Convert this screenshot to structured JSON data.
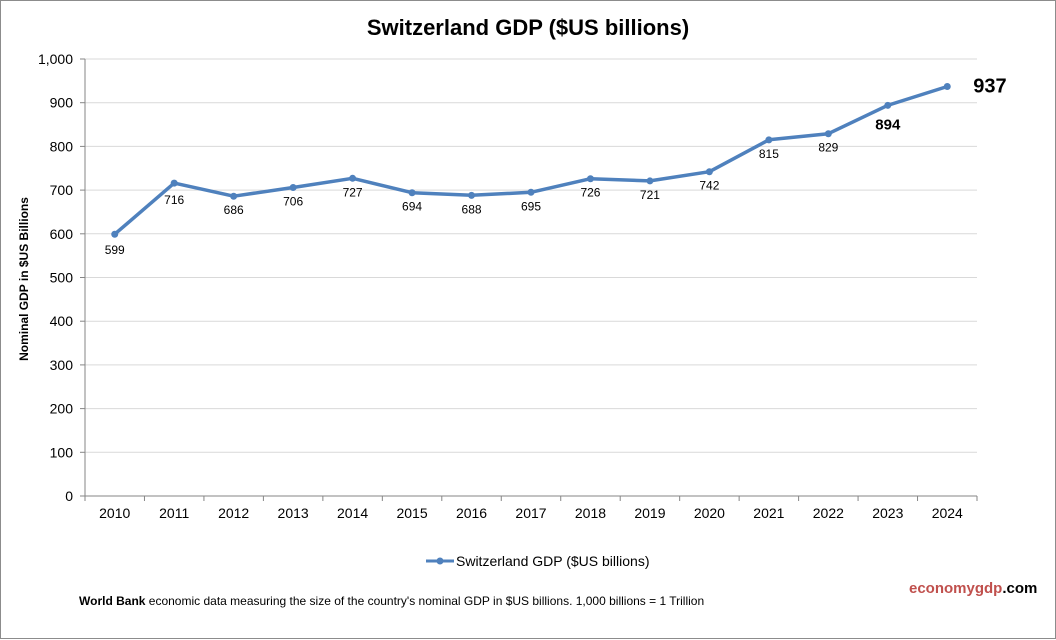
{
  "chart_data": {
    "type": "line",
    "title": "Switzerland GDP ($US billions)",
    "xlabel": "",
    "ylabel": "Nominal GDP in $US Billions",
    "categories": [
      "2010",
      "2011",
      "2012",
      "2013",
      "2014",
      "2015",
      "2016",
      "2017",
      "2018",
      "2019",
      "2020",
      "2021",
      "2022",
      "2023",
      "2024"
    ],
    "series": [
      {
        "name": "Switzerland GDP ($US billions)",
        "values": [
          599,
          716,
          686,
          706,
          727,
          694,
          688,
          695,
          726,
          721,
          742,
          815,
          829,
          894,
          937
        ],
        "data_labels": [
          "599",
          "716",
          "686",
          "706",
          "727",
          "694",
          "688",
          "695",
          "726",
          "721",
          "742",
          "815",
          "829",
          "894",
          "937"
        ]
      }
    ],
    "yticks": [
      "0",
      "100",
      "200",
      "300",
      "400",
      "500",
      "600",
      "700",
      "800",
      "900",
      "1,000"
    ],
    "ylim": [
      0,
      1000
    ],
    "grid": true,
    "legend": "bottom",
    "series_color": "#4f81bd"
  },
  "footer": {
    "source_bold": "World Bank",
    "note": " economic data  measuring the size of the country's nominal GDP in $US billions. 1,000 billions = 1 Trillion"
  },
  "brand": {
    "part1": "economy",
    "part2": "gdp",
    "part3": ".com",
    "color1": "#c0504d",
    "color2": "#c0504d",
    "color3": "#000000"
  }
}
